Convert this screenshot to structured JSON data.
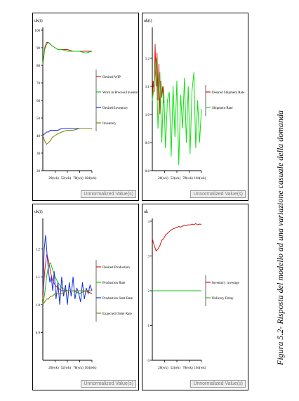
{
  "caption": "Figura 5.2- Risposta del modello ad una variazione casuale della domanda",
  "stamp": "Unnormalized Value(s)",
  "chart_data": [
    {
      "type": "line",
      "title": "",
      "ylabel": "uk(t)",
      "xlabel": "",
      "ylim": [
        20,
        100
      ],
      "xlim": [
        0,
        104
      ],
      "yticks": [
        "20",
        "30",
        "40",
        "50",
        "60",
        "70",
        "80",
        "90",
        "100"
      ],
      "xticks": [
        {
          "v": 26,
          "label": "26(wk)"
        },
        {
          "v": 52,
          "label": "52(wk)"
        },
        {
          "v": 78,
          "label": "78(wk)"
        },
        {
          "v": 104,
          "label": "104(wk)"
        }
      ],
      "legend": "right",
      "series": [
        {
          "name": "Desired WIP",
          "color": "#e01010",
          "x": [
            0,
            4,
            8,
            12,
            16,
            20,
            26,
            32,
            40,
            52,
            64,
            78,
            90,
            104
          ],
          "y": [
            80,
            90,
            93,
            93,
            92,
            91,
            90,
            89,
            89,
            89,
            88,
            88,
            88,
            88
          ]
        },
        {
          "name": "Work in Process Inventory",
          "color": "#10c010",
          "x": [
            0,
            4,
            8,
            12,
            16,
            20,
            26,
            32,
            40,
            52,
            64,
            78,
            90,
            104
          ],
          "y": [
            81,
            89,
            92,
            93,
            92,
            91,
            90,
            89,
            89,
            88,
            88,
            88,
            87,
            88
          ]
        },
        {
          "name": "Desired Inventory",
          "color": "#1030e0",
          "x": [
            0,
            4,
            8,
            12,
            16,
            20,
            26,
            32,
            40,
            52,
            64,
            78,
            90,
            104
          ],
          "y": [
            40,
            41,
            42,
            42,
            43,
            43,
            43,
            43,
            44,
            44,
            44,
            44,
            44,
            44
          ]
        },
        {
          "name": "Inventory",
          "color": "#808000",
          "x": [
            0,
            4,
            8,
            12,
            16,
            20,
            26,
            32,
            40,
            52,
            64,
            78,
            90,
            104
          ],
          "y": [
            40,
            37,
            35,
            36,
            37,
            39,
            40,
            41,
            42,
            43,
            43,
            44,
            44,
            44
          ]
        }
      ]
    },
    {
      "type": "line",
      "title": "",
      "ylabel": "uk(t)",
      "xlabel": "",
      "ylim": [
        0.8,
        1.3
      ],
      "xlim": [
        0,
        104
      ],
      "yticks": [
        "0.8",
        "0.9",
        "1.0",
        "1.1",
        "1.2"
      ],
      "xticks": [
        {
          "v": 26,
          "label": "26(wk)"
        },
        {
          "v": 52,
          "label": "52(wk)"
        },
        {
          "v": 78,
          "label": "78(wk)"
        },
        {
          "v": 104,
          "label": "104(wk)"
        }
      ],
      "legend": "right",
      "series": [
        {
          "name": "Desired Shipment Rate",
          "color": "#e01010",
          "x": [
            0,
            2,
            4,
            6,
            8,
            10,
            12,
            14,
            16,
            18,
            20,
            22,
            24
          ],
          "y": [
            1.05,
            1.12,
            1.08,
            1.25,
            1.1,
            1.22,
            1.05,
            1.18,
            1.0,
            1.12,
            1.06,
            1.1,
            1.04
          ]
        },
        {
          "name": "Shipment Rate",
          "color": "#10e010",
          "x": [
            0,
            4,
            8,
            12,
            16,
            20,
            24,
            28,
            32,
            36,
            40,
            44,
            48,
            52,
            56,
            60,
            64,
            68,
            72,
            76,
            80,
            84,
            88,
            92,
            96,
            100,
            104
          ],
          "y": [
            1.05,
            1.1,
            1.2,
            0.95,
            1.15,
            0.9,
            1.1,
            0.88,
            1.05,
            1.08,
            0.85,
            1.1,
            0.92,
            1.12,
            0.82,
            1.07,
            0.95,
            1.13,
            0.9,
            1.1,
            0.86,
            1.08,
            1.15,
            0.88,
            1.05,
            0.9,
            1.02
          ]
        }
      ]
    },
    {
      "type": "line",
      "title": "",
      "ylabel": "uk(t)",
      "xlabel": "",
      "ylim": [
        0.8,
        1.3
      ],
      "xlim": [
        0,
        104
      ],
      "yticks": [
        "0.9",
        "1.0",
        "1.1",
        "1.2"
      ],
      "xticks": [
        {
          "v": 26,
          "label": "26(wk)"
        },
        {
          "v": 52,
          "label": "52(wk)"
        },
        {
          "v": 78,
          "label": "78(wk)"
        },
        {
          "v": 104,
          "label": "104(wk)"
        }
      ],
      "legend": "right",
      "series": [
        {
          "name": "Desired Production",
          "color": "#e01010",
          "x": [
            0,
            4,
            8,
            12,
            16,
            20,
            26,
            32,
            40,
            52,
            64,
            78,
            90,
            104
          ],
          "y": [
            1.02,
            1.12,
            1.18,
            1.16,
            1.12,
            1.09,
            1.07,
            1.06,
            1.05,
            1.05,
            1.05,
            1.04,
            1.05,
            1.04
          ]
        },
        {
          "name": "Production Rate",
          "color": "#10c010",
          "x": [
            0,
            4,
            8,
            12,
            16,
            20,
            26,
            32,
            40,
            52,
            64,
            78,
            90,
            104
          ],
          "y": [
            1.0,
            1.04,
            1.1,
            1.14,
            1.15,
            1.13,
            1.1,
            1.08,
            1.06,
            1.05,
            1.05,
            1.04,
            1.05,
            1.05
          ]
        },
        {
          "name": "Production Start Rate",
          "color": "#1030e0",
          "x": [
            0,
            3,
            6,
            9,
            12,
            15,
            18,
            21,
            24,
            28,
            32,
            36,
            40,
            44,
            48,
            52,
            56,
            60,
            64,
            68,
            72,
            76,
            80,
            84,
            88,
            92,
            96,
            100,
            104
          ],
          "y": [
            1.05,
            1.2,
            1.25,
            1.18,
            1.12,
            1.08,
            1.1,
            1.05,
            1.12,
            1.02,
            1.08,
            1.0,
            1.1,
            1.03,
            1.07,
            1.0,
            1.08,
            1.03,
            1.1,
            1.02,
            1.06,
            1.04,
            1.01,
            1.08,
            1.02,
            1.06,
            1.04,
            1.07,
            1.05
          ]
        },
        {
          "name": "Expected Order Rate",
          "color": "#808000",
          "x": [
            0,
            4,
            8,
            12,
            16,
            20,
            26,
            32,
            40,
            52,
            64,
            78,
            90,
            104
          ],
          "y": [
            1.0,
            1.01,
            1.02,
            1.02,
            1.03,
            1.03,
            1.04,
            1.04,
            1.04,
            1.05,
            1.05,
            1.05,
            1.05,
            1.05
          ]
        }
      ]
    },
    {
      "type": "line",
      "title": "",
      "ylabel": "uk",
      "xlabel": "",
      "ylim": [
        0,
        4
      ],
      "xlim": [
        0,
        104
      ],
      "yticks": [
        "0",
        "1",
        "2",
        "3",
        "4"
      ],
      "xticks": [
        {
          "v": 26,
          "label": "26(wk)"
        },
        {
          "v": 52,
          "label": "52(wk)"
        },
        {
          "v": 78,
          "label": "78(wk)"
        },
        {
          "v": 104,
          "label": "104(wk)"
        }
      ],
      "legend": "right",
      "series": [
        {
          "name": "Inventory coverage",
          "color": "#d01010",
          "x": [
            0,
            4,
            8,
            12,
            16,
            20,
            24,
            28,
            32,
            36,
            40,
            44,
            48,
            52,
            56,
            60,
            64,
            68,
            72,
            76,
            80,
            84,
            88,
            92,
            96,
            100,
            104
          ],
          "y": [
            3.5,
            3.3,
            3.15,
            3.2,
            3.3,
            3.45,
            3.5,
            3.6,
            3.65,
            3.7,
            3.75,
            3.78,
            3.8,
            3.82,
            3.85,
            3.83,
            3.86,
            3.88,
            3.87,
            3.9,
            3.89,
            3.92,
            3.9,
            3.93,
            3.9,
            3.92,
            3.91
          ]
        },
        {
          "name": "Delivery Delay",
          "color": "#10c010",
          "x": [
            0,
            104
          ],
          "y": [
            2.0,
            2.0
          ]
        }
      ]
    }
  ]
}
